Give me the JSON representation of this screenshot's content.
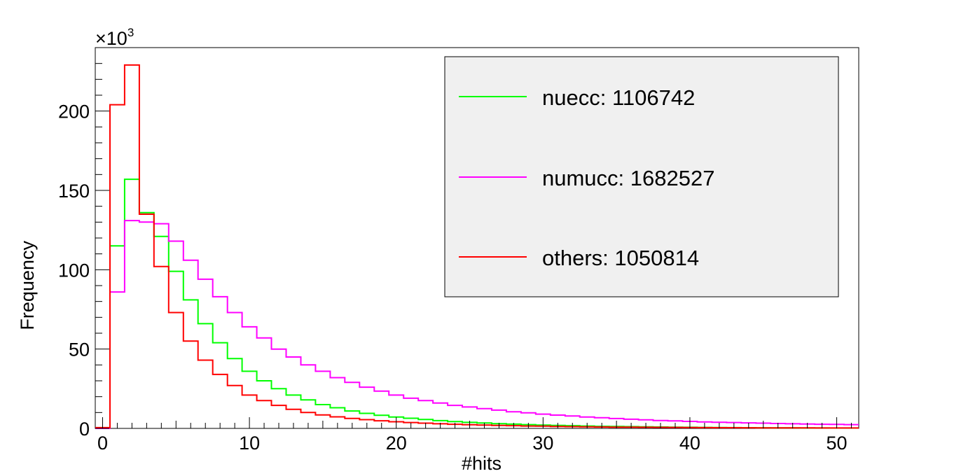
{
  "chart_data": {
    "type": "histogram",
    "xlabel": "#hits",
    "ylabel": "Frequency",
    "y_multiplier_label": "×10",
    "y_multiplier_exponent": "3",
    "xlim": [
      -0.5,
      51.5
    ],
    "ylim": [
      0,
      240
    ],
    "x_ticks": [
      0,
      10,
      20,
      30,
      40,
      50
    ],
    "x_tick_labels": [
      "0",
      "10",
      "20",
      "30",
      "40",
      "50"
    ],
    "y_ticks": [
      0,
      50,
      100,
      150,
      200
    ],
    "y_tick_labels": [
      "0",
      "50",
      "100",
      "150",
      "200"
    ],
    "grid": false,
    "legend_placement": "top-right",
    "bin_width": 1,
    "series": [
      {
        "name": "nuecc: 1106742",
        "color": "#00ff00",
        "values": [
          0,
          115,
          157,
          136,
          121,
          99,
          81,
          66,
          54,
          44,
          36,
          30,
          25,
          21,
          18,
          15,
          13,
          11,
          9.5,
          8.3,
          7.2,
          6.4,
          5.6,
          4.9,
          4.3,
          3.8,
          3.4,
          3.0,
          2.7,
          2.4,
          2.1,
          1.9,
          1.7,
          1.5,
          1.3,
          1.2,
          1.1,
          1.0,
          0.9,
          0.8,
          0.7,
          0.6,
          0.55,
          0.5,
          0.45,
          0.4,
          0.35,
          0.3,
          0.28,
          0.25,
          0.22,
          0.2
        ]
      },
      {
        "name": "numucc: 1682527",
        "color": "#ff00ff",
        "values": [
          0,
          86,
          131,
          130,
          129,
          118,
          106,
          94,
          83,
          73,
          64,
          57,
          50,
          45,
          40,
          36,
          32,
          29,
          26,
          23.5,
          21,
          19,
          17.5,
          16,
          14.5,
          13.5,
          12.5,
          11.5,
          10.5,
          9.8,
          9.0,
          8.4,
          7.8,
          7.2,
          6.7,
          6.2,
          5.8,
          5.4,
          5.0,
          4.7,
          4.4,
          4.1,
          3.9,
          3.7,
          3.5,
          3.3,
          3.1,
          2.9,
          2.8,
          2.6,
          2.5,
          2.4
        ]
      },
      {
        "name": "others: 1050814",
        "color": "#ff0000",
        "values": [
          0.5,
          204,
          229,
          135,
          102,
          73,
          55,
          43,
          34,
          27,
          21,
          17.5,
          14.5,
          12,
          10,
          8.5,
          7.3,
          6.3,
          5.5,
          4.8,
          4.2,
          3.7,
          3.3,
          2.9,
          2.6,
          2.3,
          2.1,
          1.9,
          1.7,
          1.5,
          1.4,
          1.2,
          1.1,
          1.0,
          0.9,
          0.8,
          0.75,
          0.7,
          0.65,
          0.6,
          0.55,
          0.5,
          0.45,
          0.42,
          0.4,
          0.37,
          0.35,
          0.32,
          0.3,
          0.28,
          0.26,
          0.25
        ]
      }
    ]
  }
}
